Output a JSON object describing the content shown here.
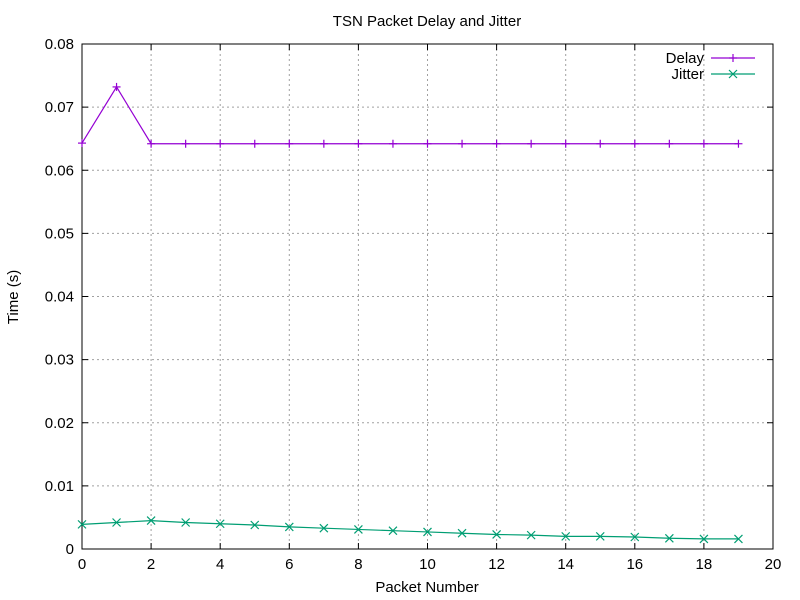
{
  "chart_data": {
    "type": "line",
    "title": "TSN Packet Delay and Jitter",
    "xlabel": "Packet Number",
    "ylabel": "Time (s)",
    "xlim": [
      0,
      20
    ],
    "ylim": [
      0,
      0.08
    ],
    "xticks": [
      0,
      2,
      4,
      6,
      8,
      10,
      12,
      14,
      16,
      18,
      20
    ],
    "yticks": [
      0,
      0.01,
      0.02,
      0.03,
      0.04,
      0.05,
      0.06,
      0.07,
      0.08
    ],
    "ytick_labels": [
      "0",
      "0.01",
      "0.02",
      "0.03",
      "0.04",
      "0.05",
      "0.06",
      "0.07",
      "0.08"
    ],
    "grid": true,
    "legend_position": "top-right",
    "x": [
      0,
      1,
      2,
      3,
      4,
      5,
      6,
      7,
      8,
      9,
      10,
      11,
      12,
      13,
      14,
      15,
      16,
      17,
      18,
      19
    ],
    "series": [
      {
        "name": "Delay",
        "color": "#9400d3",
        "marker": "plus",
        "values": [
          0.0643,
          0.0732,
          0.0642,
          0.0642,
          0.0642,
          0.0642,
          0.0642,
          0.0642,
          0.0642,
          0.0642,
          0.0642,
          0.0642,
          0.0642,
          0.0642,
          0.0642,
          0.0642,
          0.0642,
          0.0642,
          0.0642,
          0.0642
        ]
      },
      {
        "name": "Jitter",
        "color": "#009e73",
        "marker": "cross",
        "values": [
          0.0039,
          0.0042,
          0.0045,
          0.0042,
          0.004,
          0.0038,
          0.0035,
          0.0033,
          0.0031,
          0.0029,
          0.0027,
          0.0025,
          0.0023,
          0.0022,
          0.002,
          0.002,
          0.0019,
          0.0017,
          0.0016,
          0.0016
        ]
      }
    ]
  }
}
